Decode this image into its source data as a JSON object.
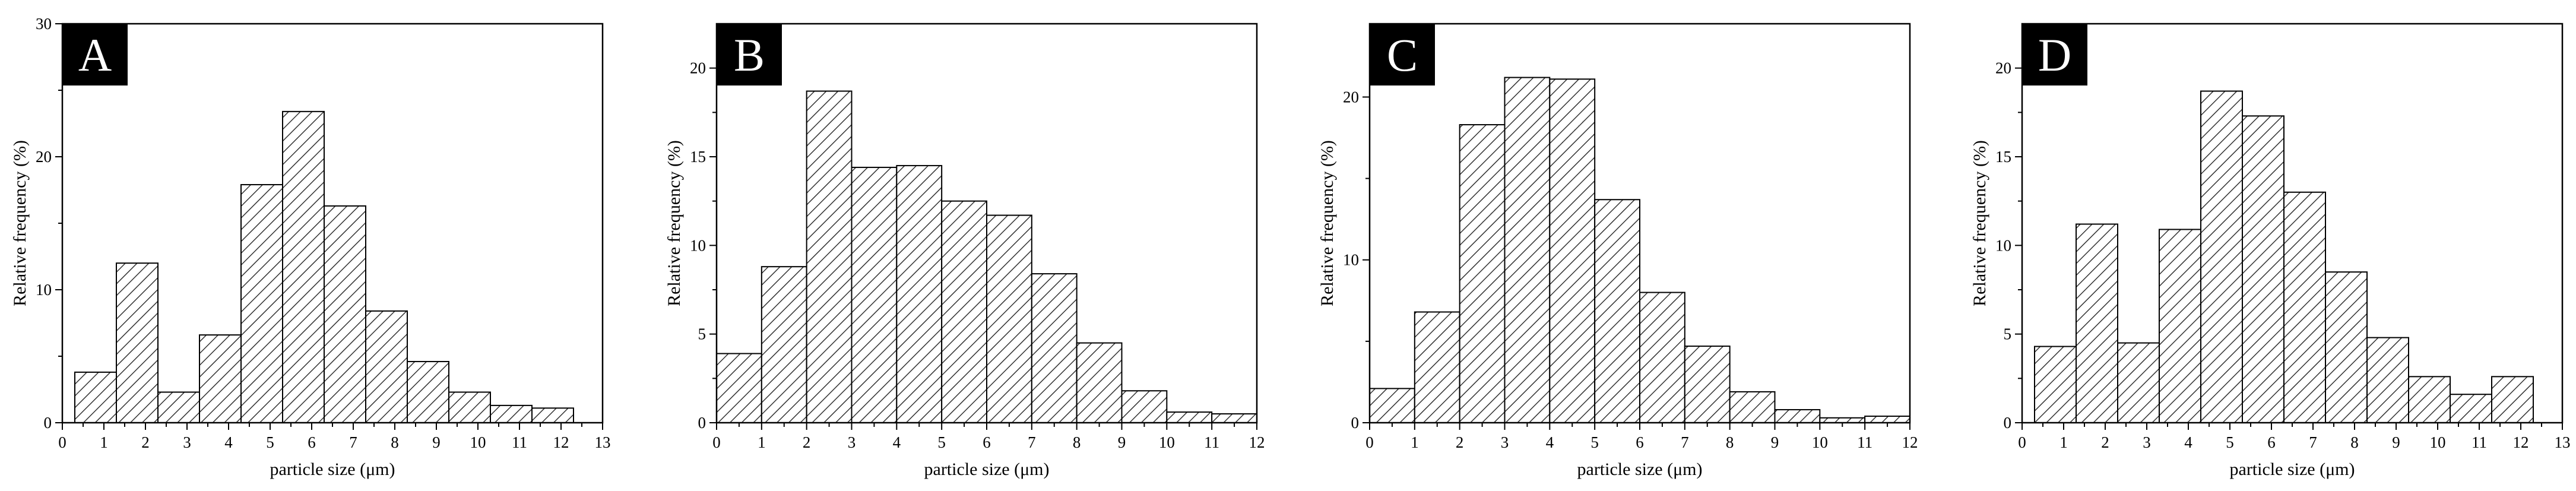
{
  "chart_data": [
    {
      "type": "bar",
      "panel_label": "A",
      "xlabel": "particle size (μm)",
      "ylabel": "Relative frequency (%)",
      "xlim": [
        0,
        13
      ],
      "ylim": [
        0,
        30
      ],
      "xticks": [
        0,
        1,
        2,
        3,
        4,
        5,
        6,
        7,
        8,
        9,
        10,
        11,
        12,
        13
      ],
      "yticks": [
        0,
        10,
        20,
        30
      ],
      "bin_width": 1,
      "bin_starts": [
        0.3,
        1.3,
        2.3,
        3.3,
        4.3,
        5.3,
        6.3,
        7.3,
        8.3,
        9.3,
        10.3,
        11.3
      ],
      "values": [
        3.8,
        12.0,
        2.3,
        6.6,
        17.9,
        23.4,
        16.3,
        8.4,
        4.6,
        2.3,
        1.3,
        1.1
      ]
    },
    {
      "type": "bar",
      "panel_label": "B",
      "xlabel": "particle size (μm)",
      "ylabel": "Relative frequency (%)",
      "xlim": [
        0,
        12
      ],
      "ylim": [
        0,
        22.5
      ],
      "xticks": [
        0,
        1,
        2,
        3,
        4,
        5,
        6,
        7,
        8,
        9,
        10,
        11,
        12
      ],
      "yticks": [
        0,
        5,
        10,
        15,
        20
      ],
      "bin_width": 1,
      "bin_starts": [
        0,
        1,
        2,
        3,
        4,
        5,
        6,
        7,
        8,
        9,
        10,
        11
      ],
      "values": [
        3.9,
        8.8,
        18.7,
        14.4,
        14.5,
        12.5,
        11.7,
        8.4,
        4.5,
        1.8,
        0.6,
        0.5
      ]
    },
    {
      "type": "bar",
      "panel_label": "C",
      "xlabel": "particle size (μm)",
      "ylabel": "Relative frequency (%)",
      "xlim": [
        0,
        12
      ],
      "ylim": [
        0,
        24.5
      ],
      "xticks": [
        0,
        1,
        2,
        3,
        4,
        5,
        6,
        7,
        8,
        9,
        10,
        11,
        12
      ],
      "yticks": [
        0,
        10,
        20
      ],
      "bin_width": 1,
      "bin_starts": [
        0,
        1,
        2,
        3,
        4,
        5,
        6,
        7,
        8,
        9,
        10,
        11
      ],
      "values": [
        2.1,
        6.8,
        18.3,
        21.2,
        21.1,
        13.7,
        8.0,
        4.7,
        1.9,
        0.8,
        0.3,
        0.4
      ]
    },
    {
      "type": "bar",
      "panel_label": "D",
      "xlabel": "particle size (μm)",
      "ylabel": "Relative frequency (%)",
      "xlim": [
        0,
        13
      ],
      "ylim": [
        0,
        22.5
      ],
      "xticks": [
        0,
        1,
        2,
        3,
        4,
        5,
        6,
        7,
        8,
        9,
        10,
        11,
        12,
        13
      ],
      "yticks": [
        0,
        5,
        10,
        15,
        20
      ],
      "bin_width": 1,
      "bin_starts": [
        0.3,
        1.3,
        2.3,
        3.3,
        4.3,
        5.3,
        6.3,
        7.3,
        8.3,
        9.3,
        10.3,
        11.3
      ],
      "values": [
        4.3,
        11.2,
        4.5,
        10.9,
        18.7,
        17.3,
        13.0,
        8.5,
        4.8,
        2.6,
        1.6,
        2.6
      ]
    }
  ]
}
